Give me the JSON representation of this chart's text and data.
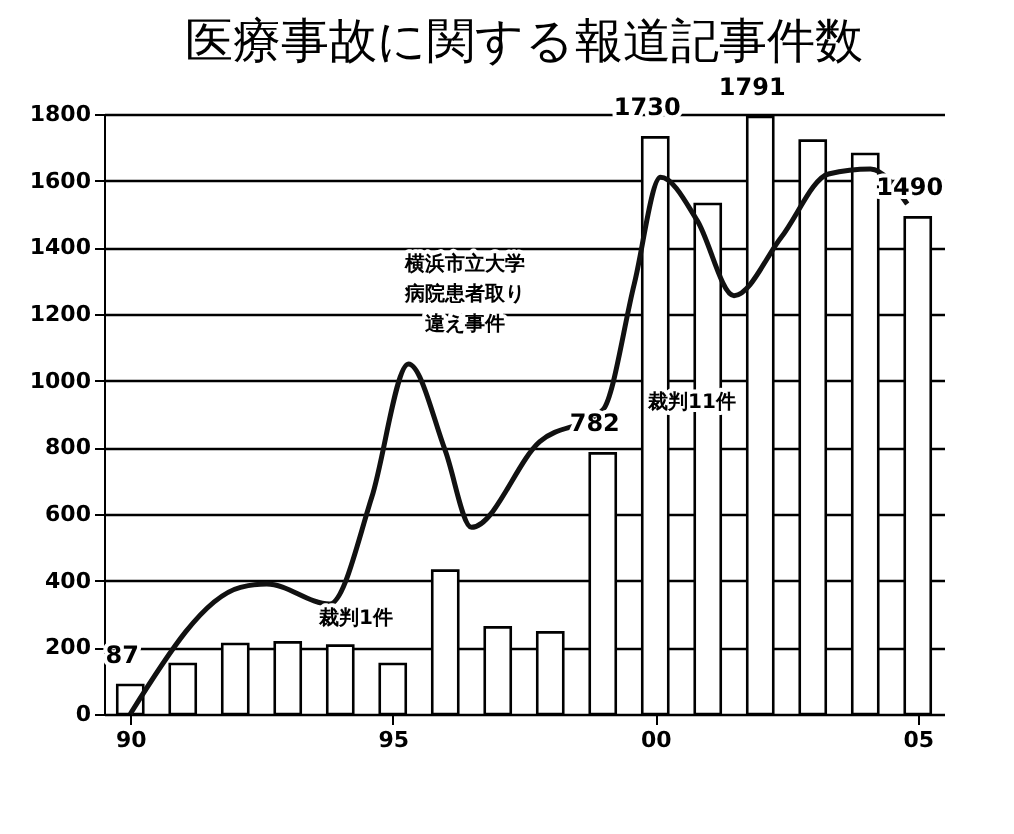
{
  "chart_data": {
    "type": "bar",
    "title": "医療事故に関する報道記事件数",
    "x": [
      1990,
      1991,
      1992,
      1993,
      1994,
      1995,
      1996,
      1997,
      1998,
      1999,
      2000,
      2001,
      2002,
      2003,
      2004,
      2005
    ],
    "series": [
      {
        "color": "#ffffff",
        "values": [
          87,
          150,
          210,
          215,
          205,
          150,
          430,
          260,
          245,
          782,
          1730,
          1530,
          1791,
          1720,
          1680,
          1490
        ],
        "value_labels": [
          "87",
          null,
          null,
          null,
          null,
          null,
          null,
          null,
          null,
          "782",
          "1730",
          null,
          "1791",
          null,
          null,
          "1490"
        ]
      },
      {
        "type": "line",
        "color": "#111111",
        "x": [
          1990,
          1992.1,
          1992.6,
          1993.8,
          1994.6,
          1995.3,
          1996,
          1996.5,
          1997.8,
          1999,
          1999.6,
          2000.1,
          2000.8,
          2001.5,
          2002.4,
          2003.3,
          2004.1,
          2004.8
        ],
        "values": [
          0,
          380,
          390,
          330,
          650,
          1050,
          790,
          560,
          817,
          912,
          1290,
          1610,
          1480,
          1255,
          1430,
          1620,
          1635,
          1530
        ]
      }
    ],
    "xlim": [
      1989.5,
      2005.5
    ],
    "xticks": [
      {
        "value": 1990,
        "label": "90"
      },
      {
        "value": 1995,
        "label": "95"
      },
      {
        "value": 2000,
        "label": "00"
      },
      {
        "value": 2005,
        "label": "05"
      }
    ],
    "ylim": [
      0,
      1800
    ],
    "yticks": [
      0,
      200,
      400,
      600,
      800,
      1000,
      1200,
      1400,
      1600,
      1800
    ],
    "grid": "y",
    "annotations": [
      "裁判1件",
      "横浜市立大学",
      "病院患者取り",
      "違え事件",
      "裁判11件"
    ]
  }
}
